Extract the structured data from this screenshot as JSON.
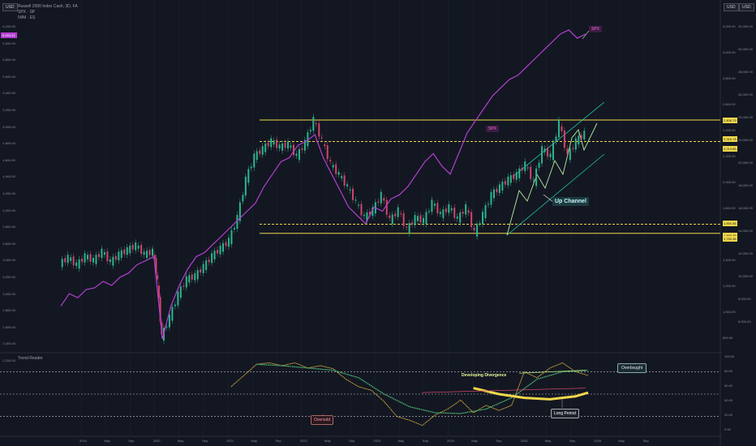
{
  "header": {
    "title": "Russell 2000 Index Cash, 3D, FA",
    "line2": "SPX · SP",
    "line3": "IWM · ES"
  },
  "top_badges": {
    "left_currency": "USD",
    "right_currency": "USD"
  },
  "sub_panel_title": "Trend Reader",
  "labels": {
    "up_channel": "Up Channel",
    "spx": "SPX",
    "spx2": "SPX",
    "developing_divergence": "Developing Divergence",
    "overbought": "Overbought",
    "oversold": "Oversold",
    "long_period": "Long Period"
  },
  "colors": {
    "background": "#131722",
    "spx_line": "#b43fd0",
    "yellow": "#f0d84a",
    "channel": "#22c3a8",
    "green_bar": "#2bb58f",
    "red_bar": "#d0456a"
  },
  "chart_data": {
    "type": "line",
    "left_axis": {
      "ticks": [
        "6,200.00",
        "6,000.00",
        "5,800.00",
        "5,600.00",
        "5,400.00",
        "5,200.00",
        "5,000.00",
        "4,800.00",
        "4,600.00",
        "4,400.00",
        "4,200.00",
        "4,000.00",
        "3,800.00",
        "3,600.00",
        "3,400.00",
        "3,200.00",
        "3,000.00",
        "2,800.00",
        "2,600.00",
        "2,400.00",
        "2,200.00"
      ],
      "highlight": "6,093.31"
    },
    "right_axis": {
      "ticks_russell": [
        "3,200.00",
        "3,000.00",
        "2,800.00",
        "2,600.00",
        "2,400.00",
        "2,200.00",
        "2,000.00",
        "1,800.00",
        "1,600.00",
        "1,400.00",
        "1,200.00",
        "1,000.00",
        "800.00"
      ],
      "ticks_spx": [
        "32,000.00",
        "30,000.00",
        "28,000.00",
        "26,000.00",
        "24,000.00",
        "22,000.00",
        "20,000.00",
        "18,000.00",
        "16,000.00",
        "14,000.00",
        "12,000.00",
        "10,000.00",
        "8,000.00",
        "6,000.00"
      ],
      "price_boxes": [
        "2,406.79",
        "2,316.78",
        "2,213.85",
        "1,900.36",
        "1,900.36",
        "1,750.36"
      ]
    },
    "sub_axis_ticks": [
      "100.00",
      "80.00",
      "60.00",
      "40.00",
      "20.00",
      "0.00"
    ],
    "x_ticks": [
      "2019",
      "May",
      "Sep",
      "2020",
      "May",
      "Sep",
      "2021",
      "May",
      "Sep",
      "2022",
      "May",
      "Sep",
      "2023",
      "May",
      "Sep",
      "2024",
      "May",
      "Sep",
      "2025",
      "May",
      "Sep",
      "2026",
      "May",
      "Sep"
    ],
    "levels": {
      "upper": 2440,
      "upper_dashed": 2300,
      "lower_dashed": 1760,
      "lower": 1700
    },
    "russell": [
      {
        "t": 0,
        "v": 1500
      },
      {
        "t": 10,
        "v": 1540
      },
      {
        "t": 20,
        "v": 1490
      },
      {
        "t": 30,
        "v": 1550
      },
      {
        "t": 40,
        "v": 1520
      },
      {
        "t": 50,
        "v": 1580
      },
      {
        "t": 60,
        "v": 1510
      },
      {
        "t": 70,
        "v": 1560
      },
      {
        "t": 80,
        "v": 1590
      },
      {
        "t": 90,
        "v": 1620
      },
      {
        "t": 100,
        "v": 1560
      },
      {
        "t": 110,
        "v": 1580
      },
      {
        "t": 115,
        "v": 1380
      },
      {
        "t": 120,
        "v": 1020
      },
      {
        "t": 130,
        "v": 1150
      },
      {
        "t": 140,
        "v": 1300
      },
      {
        "t": 150,
        "v": 1400
      },
      {
        "t": 160,
        "v": 1420
      },
      {
        "t": 170,
        "v": 1480
      },
      {
        "t": 180,
        "v": 1550
      },
      {
        "t": 190,
        "v": 1600
      },
      {
        "t": 200,
        "v": 1650
      },
      {
        "t": 210,
        "v": 1800
      },
      {
        "t": 220,
        "v": 2050
      },
      {
        "t": 230,
        "v": 2200
      },
      {
        "t": 240,
        "v": 2250
      },
      {
        "t": 250,
        "v": 2300
      },
      {
        "t": 260,
        "v": 2260
      },
      {
        "t": 270,
        "v": 2280
      },
      {
        "t": 280,
        "v": 2200
      },
      {
        "t": 290,
        "v": 2290
      },
      {
        "t": 300,
        "v": 2440
      },
      {
        "t": 310,
        "v": 2300
      },
      {
        "t": 320,
        "v": 2150
      },
      {
        "t": 330,
        "v": 2080
      },
      {
        "t": 340,
        "v": 2000
      },
      {
        "t": 350,
        "v": 1900
      },
      {
        "t": 360,
        "v": 1800
      },
      {
        "t": 370,
        "v": 1850
      },
      {
        "t": 380,
        "v": 1950
      },
      {
        "t": 390,
        "v": 1780
      },
      {
        "t": 400,
        "v": 1850
      },
      {
        "t": 410,
        "v": 1720
      },
      {
        "t": 420,
        "v": 1800
      },
      {
        "t": 430,
        "v": 1780
      },
      {
        "t": 440,
        "v": 1900
      },
      {
        "t": 450,
        "v": 1820
      },
      {
        "t": 460,
        "v": 1870
      },
      {
        "t": 470,
        "v": 1790
      },
      {
        "t": 480,
        "v": 1870
      },
      {
        "t": 490,
        "v": 1700
      },
      {
        "t": 500,
        "v": 1820
      },
      {
        "t": 510,
        "v": 1950
      },
      {
        "t": 520,
        "v": 2000
      },
      {
        "t": 530,
        "v": 2050
      },
      {
        "t": 540,
        "v": 2080
      },
      {
        "t": 550,
        "v": 2150
      },
      {
        "t": 560,
        "v": 2030
      },
      {
        "t": 570,
        "v": 2250
      },
      {
        "t": 580,
        "v": 2200
      },
      {
        "t": 590,
        "v": 2420
      },
      {
        "t": 600,
        "v": 2200
      },
      {
        "t": 610,
        "v": 2300
      },
      {
        "t": 620,
        "v": 2350
      }
    ],
    "spx": [
      {
        "t": 0,
        "v": 2700
      },
      {
        "t": 10,
        "v": 2850
      },
      {
        "t": 20,
        "v": 2800
      },
      {
        "t": 30,
        "v": 2900
      },
      {
        "t": 40,
        "v": 2920
      },
      {
        "t": 50,
        "v": 3000
      },
      {
        "t": 60,
        "v": 2950
      },
      {
        "t": 70,
        "v": 3050
      },
      {
        "t": 80,
        "v": 3100
      },
      {
        "t": 90,
        "v": 3200
      },
      {
        "t": 100,
        "v": 3250
      },
      {
        "t": 110,
        "v": 3300
      },
      {
        "t": 115,
        "v": 2800
      },
      {
        "t": 120,
        "v": 2300
      },
      {
        "t": 130,
        "v": 2700
      },
      {
        "t": 140,
        "v": 2950
      },
      {
        "t": 150,
        "v": 3150
      },
      {
        "t": 160,
        "v": 3300
      },
      {
        "t": 170,
        "v": 3350
      },
      {
        "t": 180,
        "v": 3450
      },
      {
        "t": 190,
        "v": 3550
      },
      {
        "t": 200,
        "v": 3650
      },
      {
        "t": 210,
        "v": 3750
      },
      {
        "t": 220,
        "v": 3850
      },
      {
        "t": 230,
        "v": 3950
      },
      {
        "t": 240,
        "v": 4150
      },
      {
        "t": 250,
        "v": 4300
      },
      {
        "t": 260,
        "v": 4450
      },
      {
        "t": 270,
        "v": 4500
      },
      {
        "t": 280,
        "v": 4650
      },
      {
        "t": 290,
        "v": 4700
      },
      {
        "t": 300,
        "v": 4780
      },
      {
        "t": 310,
        "v": 4500
      },
      {
        "t": 320,
        "v": 4300
      },
      {
        "t": 330,
        "v": 4100
      },
      {
        "t": 340,
        "v": 3900
      },
      {
        "t": 350,
        "v": 3800
      },
      {
        "t": 360,
        "v": 3700
      },
      {
        "t": 370,
        "v": 3900
      },
      {
        "t": 380,
        "v": 3850
      },
      {
        "t": 390,
        "v": 4000
      },
      {
        "t": 400,
        "v": 4050
      },
      {
        "t": 410,
        "v": 4150
      },
      {
        "t": 420,
        "v": 4300
      },
      {
        "t": 430,
        "v": 4450
      },
      {
        "t": 440,
        "v": 4550
      },
      {
        "t": 450,
        "v": 4400
      },
      {
        "t": 460,
        "v": 4300
      },
      {
        "t": 470,
        "v": 4550
      },
      {
        "t": 480,
        "v": 4800
      },
      {
        "t": 490,
        "v": 4950
      },
      {
        "t": 500,
        "v": 5100
      },
      {
        "t": 510,
        "v": 5250
      },
      {
        "t": 520,
        "v": 5350
      },
      {
        "t": 530,
        "v": 5450
      },
      {
        "t": 540,
        "v": 5500
      },
      {
        "t": 550,
        "v": 5600
      },
      {
        "t": 560,
        "v": 5700
      },
      {
        "t": 570,
        "v": 5800
      },
      {
        "t": 580,
        "v": 5900
      },
      {
        "t": 590,
        "v": 6000
      },
      {
        "t": 600,
        "v": 6050
      },
      {
        "t": 610,
        "v": 5950
      },
      {
        "t": 620,
        "v": 6000
      }
    ],
    "indicator_fast": [
      {
        "t": 0,
        "v": 60
      },
      {
        "t": 20,
        "v": 75
      },
      {
        "t": 40,
        "v": 90
      },
      {
        "t": 60,
        "v": 92
      },
      {
        "t": 80,
        "v": 88
      },
      {
        "t": 100,
        "v": 92
      },
      {
        "t": 120,
        "v": 85
      },
      {
        "t": 140,
        "v": 88
      },
      {
        "t": 160,
        "v": 84
      },
      {
        "t": 180,
        "v": 70
      },
      {
        "t": 200,
        "v": 60
      },
      {
        "t": 220,
        "v": 55
      },
      {
        "t": 240,
        "v": 40
      },
      {
        "t": 260,
        "v": 20
      },
      {
        "t": 280,
        "v": 15
      },
      {
        "t": 300,
        "v": 8
      },
      {
        "t": 320,
        "v": 22
      },
      {
        "t": 340,
        "v": 30
      },
      {
        "t": 360,
        "v": 42
      },
      {
        "t": 380,
        "v": 25
      },
      {
        "t": 400,
        "v": 35
      },
      {
        "t": 420,
        "v": 28
      },
      {
        "t": 440,
        "v": 35
      },
      {
        "t": 460,
        "v": 80
      },
      {
        "t": 480,
        "v": 72
      },
      {
        "t": 500,
        "v": 85
      },
      {
        "t": 520,
        "v": 92
      },
      {
        "t": 540,
        "v": 80
      },
      {
        "t": 560,
        "v": 75
      }
    ],
    "indicator_slow": [
      {
        "t": 40,
        "v": 90
      },
      {
        "t": 80,
        "v": 88
      },
      {
        "t": 120,
        "v": 85
      },
      {
        "t": 160,
        "v": 82
      },
      {
        "t": 200,
        "v": 72
      },
      {
        "t": 240,
        "v": 50
      },
      {
        "t": 280,
        "v": 33
      },
      {
        "t": 320,
        "v": 25
      },
      {
        "t": 360,
        "v": 24
      },
      {
        "t": 400,
        "v": 30
      },
      {
        "t": 440,
        "v": 45
      },
      {
        "t": 480,
        "v": 70
      },
      {
        "t": 520,
        "v": 80
      },
      {
        "t": 560,
        "v": 82
      }
    ],
    "long_period": [
      {
        "t": 380,
        "v": 58
      },
      {
        "t": 420,
        "v": 50
      },
      {
        "t": 460,
        "v": 45
      },
      {
        "t": 500,
        "v": 43
      },
      {
        "t": 540,
        "v": 47
      },
      {
        "t": 560,
        "v": 52
      }
    ]
  }
}
